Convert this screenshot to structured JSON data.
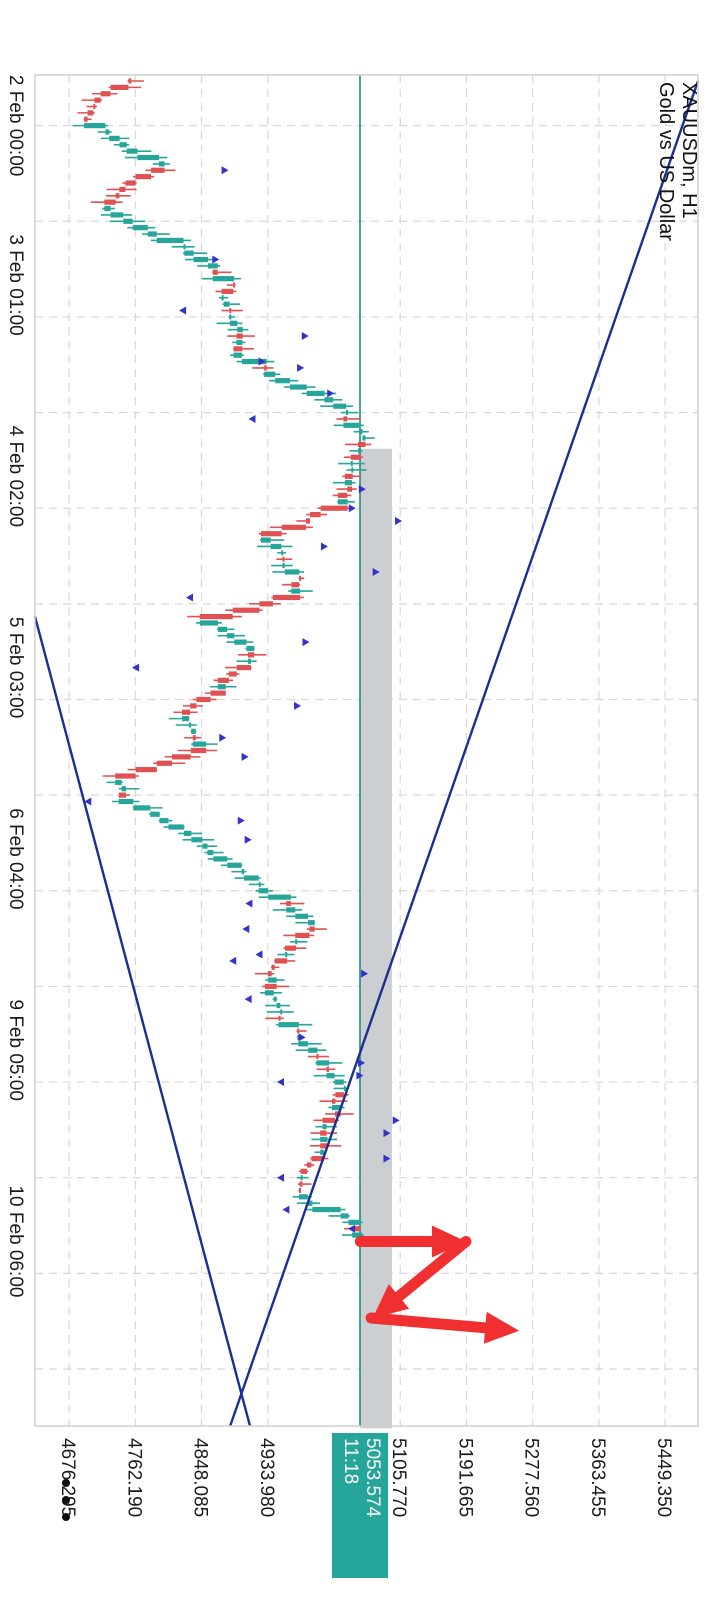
{
  "symbol_title": "XAUUSDm, H1",
  "symbol_subtitle": "Gold vs US Dollar",
  "current_price": "5053.574",
  "countdown": "11:18",
  "menu_icon": "more-dots-icon",
  "colors": {
    "bull": "#26a69a",
    "bear": "#e05252",
    "trendline": "#1a2f8f",
    "marker": "#3333cc",
    "price_line": "#1e8c7e",
    "price_badge": "#26a69a",
    "zone": "#c9ccd0",
    "arrow": "#f03030",
    "grid": "#d8d8d8"
  },
  "chart_data": {
    "type": "candlestick",
    "timeframe": "H1",
    "price_range": [
      4632,
      5492
    ],
    "price_ticks": [
      4676.295,
      4762.19,
      4848.085,
      4933.98,
      5105.77,
      5191.665,
      5277.56,
      5363.455,
      5449.35
    ],
    "time_labels": [
      {
        "label": "2 Feb 00:00",
        "bar": 7
      },
      {
        "label": "3 Feb 01:00",
        "bar": 32
      },
      {
        "label": "4 Feb 02:00",
        "bar": 62
      },
      {
        "label": "5 Feb 03:00",
        "bar": 92
      },
      {
        "label": "6 Feb 04:00",
        "bar": 122
      },
      {
        "label": "9 Feb 05:00",
        "bar": 152
      },
      {
        "label": "10 Feb 06:00",
        "bar": 182
      }
    ],
    "bar_count": 211,
    "current_price": 5053.574,
    "supply_zone": {
      "from_bar": 58,
      "to_bar": 211,
      "low": 5053.574,
      "high": 5095
    },
    "trendlines": [
      {
        "bar1": 84,
        "price1": 4632,
        "bar2": 211,
        "price2": 4911
      },
      {
        "bar1": 0,
        "price1": 5492,
        "bar2": 211,
        "price2": 4885
      }
    ],
    "markers": [
      {
        "bar": 14,
        "price": 4874
      },
      {
        "bar": 28,
        "price": 4862
      },
      {
        "bar": 36,
        "price": 4828
      },
      {
        "bar": 40,
        "price": 4978
      },
      {
        "bar": 44,
        "price": 4922
      },
      {
        "bar": 45,
        "price": 4972
      },
      {
        "bar": 49,
        "price": 5011
      },
      {
        "bar": 53,
        "price": 4918
      },
      {
        "bar": 64,
        "price": 5052
      },
      {
        "bar": 67,
        "price": 5039
      },
      {
        "bar": 69,
        "price": 5099
      },
      {
        "bar": 73,
        "price": 5003
      },
      {
        "bar": 77,
        "price": 5070
      },
      {
        "bar": 81,
        "price": 4837
      },
      {
        "bar": 88,
        "price": 4979
      },
      {
        "bar": 92,
        "price": 4767
      },
      {
        "bar": 98,
        "price": 4968
      },
      {
        "bar": 103,
        "price": 4871
      },
      {
        "bar": 106,
        "price": 4900
      },
      {
        "bar": 113,
        "price": 4705
      },
      {
        "bar": 116,
        "price": 4895
      },
      {
        "bar": 119,
        "price": 4904
      },
      {
        "bar": 129,
        "price": 4914
      },
      {
        "bar": 133,
        "price": 4910
      },
      {
        "bar": 137,
        "price": 4927
      },
      {
        "bar": 138,
        "price": 4893
      },
      {
        "bar": 140,
        "price": 5055
      },
      {
        "bar": 144,
        "price": 4913
      },
      {
        "bar": 150,
        "price": 4974
      },
      {
        "bar": 154,
        "price": 5051
      },
      {
        "bar": 156,
        "price": 5049
      },
      {
        "bar": 157,
        "price": 4955
      },
      {
        "bar": 163,
        "price": 5096
      },
      {
        "bar": 165,
        "price": 5084
      },
      {
        "bar": 169,
        "price": 5084
      },
      {
        "bar": 172,
        "price": 4955
      },
      {
        "bar": 177,
        "price": 4962
      },
      {
        "bar": 180,
        "price": 5047
      }
    ],
    "annotation_arrows": [
      {
        "points": [
          [
            182,
            5054
          ],
          [
            182,
            5191
          ]
        ]
      },
      {
        "points": [
          [
            182,
            5191
          ],
          [
            194,
            5070
          ]
        ]
      },
      {
        "points": [
          [
            194,
            5068
          ],
          [
            196,
            5260
          ]
        ]
      }
    ]
  }
}
